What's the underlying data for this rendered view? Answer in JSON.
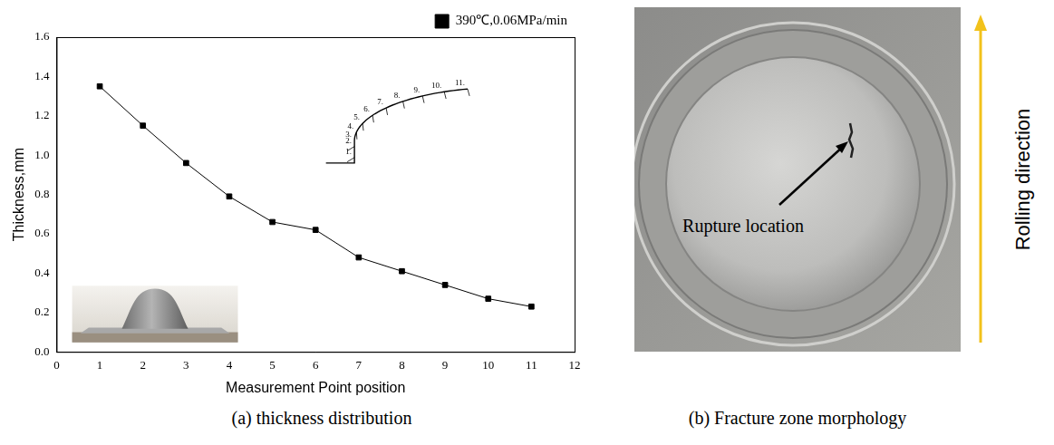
{
  "chart_data": {
    "type": "line",
    "x_label": "Measurement Point position",
    "y_label": "Thickness,mm",
    "x": [
      1,
      2,
      3,
      4,
      5,
      6,
      7,
      8,
      9,
      10,
      11
    ],
    "series": [
      {
        "name": "390℃,0.06MPa/min",
        "color": "#000000",
        "marker": "square",
        "line_style": "solid",
        "values": [
          1.35,
          1.15,
          0.96,
          0.79,
          0.66,
          0.62,
          0.48,
          0.41,
          0.34,
          0.27,
          0.23
        ]
      }
    ],
    "xlim": [
      0,
      12
    ],
    "xticks": [
      0,
      1,
      2,
      3,
      4,
      5,
      6,
      7,
      8,
      9,
      10,
      11,
      12
    ],
    "ylim": [
      0,
      1.6
    ],
    "yticks": [
      {
        "value": 0,
        "label": "0.0"
      },
      0.2,
      0.4,
      0.6,
      0.8,
      {
        "value": 1,
        "label": "1.0"
      },
      1.2,
      1.4,
      1.6
    ],
    "grid": false,
    "legend": "top right"
  },
  "figure": {
    "caption_a": "(a)  thickness distribution",
    "inset_profile_labels": [
      "1.",
      "2.",
      "3.",
      "4.",
      "5.",
      "6.",
      "7.",
      "8.",
      "9.",
      "10.",
      "11."
    ],
    "caption_b": "(b) Fracture zone morphology",
    "annotation_b": "Rupture location",
    "side_label_b": "Rolling direction"
  }
}
